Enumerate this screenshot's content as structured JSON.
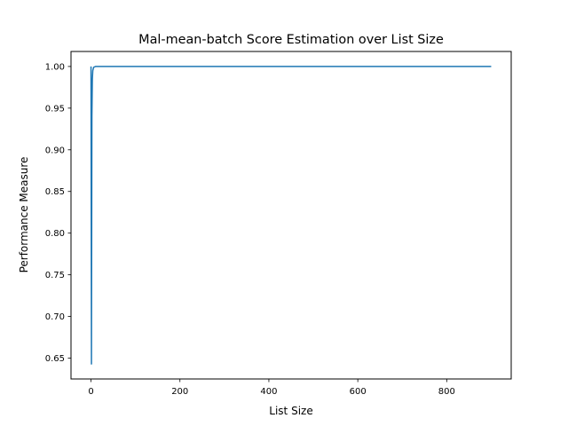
{
  "chart_data": {
    "type": "line",
    "title": "Mal-mean-batch Score Estimation over List Size",
    "xlabel": "List Size",
    "ylabel": "Performance Measure",
    "xlim": [
      -45,
      945
    ],
    "ylim": [
      0.625,
      1.018
    ],
    "x_ticks": [
      0,
      200,
      400,
      600,
      800
    ],
    "y_ticks": [
      0.65,
      0.7,
      0.75,
      0.8,
      0.85,
      0.9,
      0.95,
      1.0
    ],
    "x_tick_labels": [
      "0",
      "200",
      "400",
      "600",
      "800"
    ],
    "y_tick_labels": [
      "0.65",
      "0.70",
      "0.75",
      "0.80",
      "0.85",
      "0.90",
      "0.95",
      "1.00"
    ],
    "grid": false,
    "legend": "none",
    "series": [
      {
        "color": "#1f77b4",
        "x": [
          0,
          1,
          2,
          3,
          4,
          6,
          8,
          10,
          15,
          20,
          50,
          100,
          200,
          400,
          600,
          800,
          900
        ],
        "y": [
          1.0,
          0.643,
          0.94,
          0.985,
          0.995,
          0.999,
          0.9995,
          1.0,
          1.0,
          1.0,
          1.0,
          1.0,
          1.0,
          1.0,
          1.0,
          1.0,
          1.0
        ]
      }
    ]
  }
}
